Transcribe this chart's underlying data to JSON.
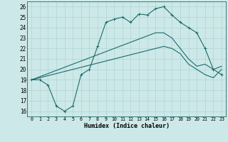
{
  "xlabel": "Humidex (Indice chaleur)",
  "xlim": [
    -0.5,
    23.5
  ],
  "ylim": [
    15.5,
    26.5
  ],
  "xticks": [
    0,
    1,
    2,
    3,
    4,
    5,
    6,
    7,
    8,
    9,
    10,
    11,
    12,
    13,
    14,
    15,
    16,
    17,
    18,
    19,
    20,
    21,
    22,
    23
  ],
  "yticks": [
    16,
    17,
    18,
    19,
    20,
    21,
    22,
    23,
    24,
    25,
    26
  ],
  "bg_color": "#cde8e8",
  "line_color": "#1a6b6b",
  "grid_color": "#afd4d4",
  "series": {
    "main": [
      19.0,
      19.0,
      18.5,
      16.5,
      16.0,
      16.5,
      19.5,
      20.0,
      22.2,
      24.5,
      24.8,
      25.0,
      24.5,
      25.3,
      25.2,
      25.8,
      26.0,
      25.2,
      24.5,
      24.0,
      23.5,
      22.0,
      20.0,
      19.5
    ],
    "diag1": [
      19.0,
      19.2,
      19.4,
      19.6,
      19.8,
      20.0,
      20.2,
      20.4,
      20.6,
      20.8,
      21.0,
      21.2,
      21.4,
      21.6,
      21.8,
      22.0,
      22.2,
      22.0,
      21.5,
      20.5,
      20.0,
      19.5,
      19.2,
      20.0
    ],
    "diag2": [
      19.0,
      19.3,
      19.6,
      19.9,
      20.2,
      20.5,
      20.8,
      21.1,
      21.4,
      21.7,
      22.0,
      22.3,
      22.6,
      22.9,
      23.2,
      23.5,
      23.5,
      23.0,
      22.0,
      21.0,
      20.3,
      20.5,
      20.0,
      20.3
    ]
  }
}
